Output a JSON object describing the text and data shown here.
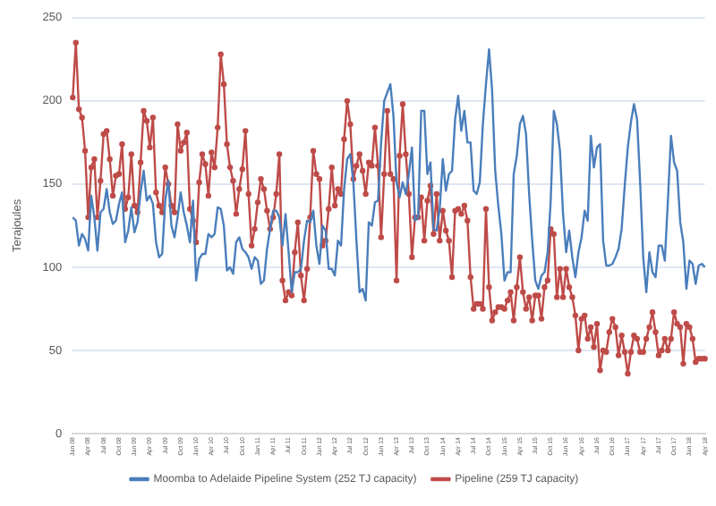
{
  "chart_data": {
    "type": "line",
    "ylabel": "Terajoules",
    "ylim": [
      0,
      250
    ],
    "yticks": [
      0,
      50,
      100,
      150,
      200,
      250
    ],
    "grid": "y",
    "legend": "bottom",
    "categories": [
      "Jan 08",
      null,
      null,
      null,
      null,
      "Apr 08",
      null,
      null,
      null,
      null,
      "Jul 08",
      null,
      null,
      null,
      null,
      "Oct 08",
      null,
      null,
      null,
      null,
      "Jan 09",
      null,
      null,
      null,
      null,
      "Apr 09",
      null,
      null,
      null,
      null,
      "Jul 09",
      null,
      null,
      null,
      null,
      "Oct 09",
      null,
      null,
      null,
      null,
      "Jan 10",
      null,
      null,
      null,
      null,
      "Apr 10",
      null,
      null,
      null,
      null,
      "Jul 10",
      null,
      null,
      null,
      null,
      "Oct 10",
      null,
      null,
      null,
      null,
      "Jan 11",
      null,
      null,
      null,
      null,
      "Apr 11",
      null,
      null,
      null,
      null,
      "Jul 11",
      null,
      null,
      null,
      null,
      "Oct 11",
      null,
      null,
      null,
      null,
      "Jan 12",
      null,
      null,
      null,
      null,
      "Apr 12",
      null,
      null,
      null,
      null,
      "Jul 12",
      null,
      null,
      null,
      null,
      "Oct 12",
      null,
      null,
      null,
      null,
      "Jan 13",
      null,
      null,
      null,
      null,
      "Apr 13",
      null,
      null,
      null,
      null,
      "Jul 13",
      null,
      null,
      null,
      null,
      "Oct 13",
      null,
      null,
      null,
      null,
      "Jan 14",
      null,
      null,
      null,
      null,
      "Apr 14",
      null,
      null,
      null,
      null,
      "Jul 14",
      null,
      null,
      null,
      null,
      "Oct 14",
      null,
      null,
      null,
      null,
      "Jan 15",
      null,
      null,
      null,
      null,
      "Apr 15",
      null,
      null,
      null,
      null,
      "Jul 15",
      null,
      null,
      null,
      null,
      "Oct 15",
      null,
      null,
      null,
      null,
      "Jan 16",
      null,
      null,
      null,
      null,
      "Apr 16",
      null,
      null,
      null,
      null,
      "Jul 16",
      null,
      null,
      null,
      null,
      "Oct 16",
      null,
      null,
      null,
      null,
      "Jan 17",
      null,
      null,
      null,
      null,
      "Apr 17",
      null,
      null,
      null,
      null,
      "Jul 17",
      null,
      null,
      null,
      null,
      "Oct 17",
      null,
      null,
      null,
      null,
      "Jan 18",
      null,
      null,
      null,
      null,
      "Apr 18"
    ],
    "series": [
      {
        "name": "Moomba to Adelaide Pipeline System (252 TJ capacity)",
        "color": "#4a7ebb",
        "marker": "none",
        "values": [
          130,
          128,
          113,
          120,
          117,
          110,
          143,
          130,
          110,
          133,
          135,
          147,
          133,
          126,
          128,
          138,
          145,
          115,
          122,
          136,
          121,
          127,
          145,
          158,
          140,
          143,
          138,
          115,
          106,
          108,
          140,
          152,
          125,
          118,
          130,
          145,
          133,
          125,
          115,
          140,
          92,
          105,
          108,
          108,
          120,
          118,
          120,
          136,
          135,
          125,
          98,
          100,
          96,
          115,
          118,
          111,
          109,
          106,
          99,
          106,
          104,
          90,
          92,
          111,
          123,
          134,
          134,
          130,
          113,
          132,
          109,
          85,
          97,
          97,
          99,
          116,
          128,
          127,
          134,
          113,
          102,
          125,
          122,
          99,
          99,
          95,
          116,
          113,
          147,
          165,
          168,
          151,
          116,
          85,
          87,
          80,
          127,
          125,
          139,
          140,
          175,
          200,
          205,
          210,
          191,
          151,
          142,
          151,
          144,
          156,
          172,
          128,
          130,
          194,
          194,
          156,
          163,
          123,
          122,
          135,
          165,
          146,
          156,
          158,
          189,
          203,
          182,
          194,
          175,
          175,
          146,
          144,
          151,
          186,
          210,
          231,
          206,
          158,
          137,
          120,
          92,
          97,
          97,
          156,
          167,
          186,
          191,
          180,
          144,
          116,
          92,
          87,
          95,
          97,
          109,
          140,
          194,
          186,
          170,
          132,
          109,
          122,
          106,
          94,
          109,
          118,
          134,
          128,
          179,
          160,
          172,
          174,
          116,
          101,
          101,
          102,
          106,
          111,
          123,
          149,
          172,
          187,
          198,
          189,
          151,
          106,
          85,
          109,
          97,
          94,
          113,
          113,
          104,
          140,
          179,
          163,
          158,
          127,
          115,
          87,
          104,
          102,
          90,
          101,
          102,
          100
        ]
      },
      {
        "name": "Pipeline (259 TJ capacity)",
        "color": "#be4b48",
        "marker": "circle",
        "values": [
          202,
          235,
          195,
          190,
          170,
          130,
          160,
          165,
          130,
          152,
          180,
          182,
          165,
          143,
          155,
          156,
          174,
          135,
          142,
          168,
          137,
          133,
          163,
          194,
          188,
          172,
          190,
          145,
          137,
          133,
          160,
          150,
          137,
          133,
          186,
          170,
          175,
          181,
          135,
          128,
          115,
          151,
          168,
          162,
          143,
          169,
          160,
          184,
          228,
          210,
          174,
          160,
          152,
          132,
          147,
          159,
          182,
          144,
          113,
          123,
          139,
          153,
          147,
          134,
          123,
          130,
          144,
          168,
          92,
          80,
          85,
          83,
          109,
          127,
          95,
          80,
          99,
          130,
          170,
          156,
          153,
          113,
          116,
          135,
          160,
          137,
          147,
          144,
          177,
          200,
          186,
          153,
          161,
          168,
          158,
          144,
          163,
          161,
          184,
          161,
          118,
          156,
          194,
          156,
          153,
          92,
          167,
          198,
          168,
          144,
          106,
          130,
          130,
          142,
          116,
          140,
          149,
          120,
          144,
          116,
          134,
          122,
          116,
          94,
          134,
          135,
          132,
          137,
          128,
          94,
          75,
          78,
          78,
          75,
          135,
          88,
          68,
          73,
          76,
          76,
          75,
          80,
          85,
          68,
          88,
          106,
          85,
          75,
          82,
          68,
          83,
          83,
          69,
          88,
          92,
          123,
          120,
          82,
          99,
          82,
          99,
          88,
          82,
          71,
          50,
          69,
          71,
          57,
          64,
          52,
          66,
          38,
          50,
          49,
          61,
          69,
          64,
          47,
          59,
          49,
          36,
          49,
          59,
          57,
          49,
          49,
          57,
          64,
          73,
          61,
          47,
          50,
          57,
          50,
          57,
          73,
          66,
          64,
          42,
          66,
          64,
          57,
          43,
          45,
          45,
          45
        ]
      }
    ]
  }
}
